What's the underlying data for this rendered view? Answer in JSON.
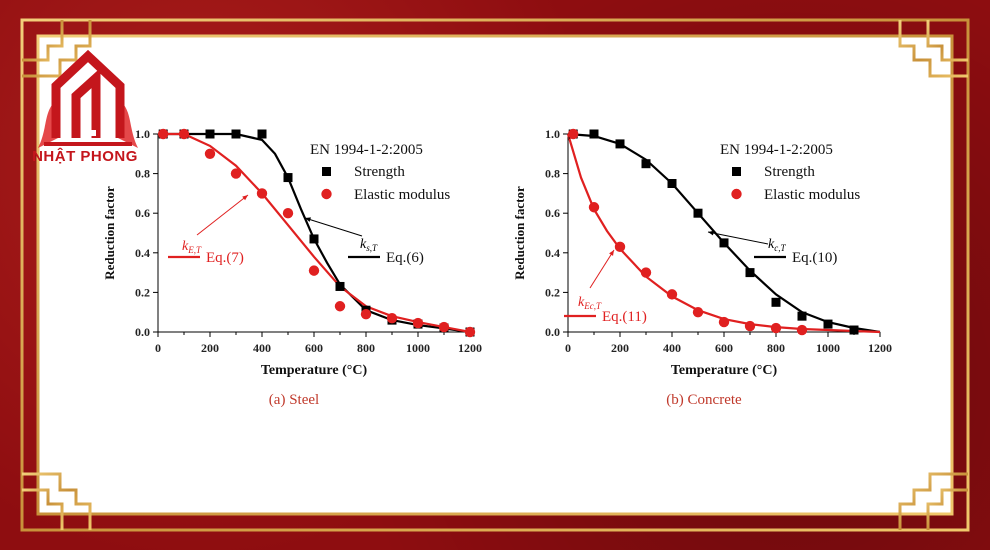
{
  "brand": {
    "name": "NHẬT PHONG"
  },
  "colors": {
    "frame_red": "#8e0d10",
    "gold": "#d9a441",
    "strength": "#000000",
    "elastic": "#e02020"
  },
  "chart_data": [
    {
      "type": "scatter",
      "caption": "(a) Steel",
      "xlabel": "Temperature (°C)",
      "ylabel": "Reduction factor",
      "xlim": [
        0,
        1200
      ],
      "ylim": [
        0,
        1.0
      ],
      "xticks": [
        "0",
        "200",
        "400",
        "600",
        "800",
        "1000",
        "1200"
      ],
      "yticks": [
        "0.0",
        "0.2",
        "0.4",
        "0.6",
        "0.8",
        "1.0"
      ],
      "legend": {
        "title": "EN 1994-1-2:2005",
        "items": [
          "Strength",
          "Elastic modulus"
        ],
        "placement": "top-right"
      },
      "series": [
        {
          "name": "Strength",
          "marker": "square",
          "color": "#000000",
          "points": [
            [
              20,
              1.0
            ],
            [
              100,
              1.0
            ],
            [
              200,
              1.0
            ],
            [
              300,
              1.0
            ],
            [
              400,
              1.0
            ],
            [
              500,
              0.78
            ],
            [
              600,
              0.47
            ],
            [
              700,
              0.23
            ],
            [
              800,
              0.11
            ],
            [
              900,
              0.06
            ],
            [
              1000,
              0.04
            ],
            [
              1100,
              0.02
            ],
            [
              1200,
              0.0
            ]
          ]
        },
        {
          "name": "Elastic modulus",
          "marker": "circle",
          "color": "#e02020",
          "points": [
            [
              20,
              1.0
            ],
            [
              100,
              1.0
            ],
            [
              200,
              0.9
            ],
            [
              300,
              0.8
            ],
            [
              400,
              0.7
            ],
            [
              500,
              0.6
            ],
            [
              600,
              0.31
            ],
            [
              700,
              0.13
            ],
            [
              800,
              0.09
            ],
            [
              900,
              0.07
            ],
            [
              1000,
              0.045
            ],
            [
              1100,
              0.025
            ],
            [
              1200,
              0.0
            ]
          ]
        }
      ],
      "curves": [
        {
          "label": "Eq.(6)",
          "color": "#000000",
          "points": [
            [
              0,
              1.0
            ],
            [
              300,
              1.0
            ],
            [
              400,
              0.97
            ],
            [
              450,
              0.9
            ],
            [
              500,
              0.78
            ],
            [
              550,
              0.62
            ],
            [
              600,
              0.47
            ],
            [
              650,
              0.35
            ],
            [
              700,
              0.24
            ],
            [
              800,
              0.11
            ],
            [
              900,
              0.06
            ],
            [
              1000,
              0.035
            ],
            [
              1100,
              0.018
            ],
            [
              1200,
              0.0
            ]
          ]
        },
        {
          "label": "Eq.(7)",
          "color": "#e02020",
          "points": [
            [
              0,
              1.0
            ],
            [
              100,
              1.0
            ],
            [
              200,
              0.94
            ],
            [
              300,
              0.84
            ],
            [
              400,
              0.7
            ],
            [
              500,
              0.54
            ],
            [
              600,
              0.38
            ],
            [
              700,
              0.23
            ],
            [
              800,
              0.13
            ],
            [
              900,
              0.08
            ],
            [
              1000,
              0.05
            ],
            [
              1100,
              0.025
            ],
            [
              1200,
              0.0
            ]
          ]
        }
      ],
      "annotations": [
        {
          "label": "k",
          "sub": "s,T",
          "text": "Eq.(6)"
        },
        {
          "label": "k",
          "sub": "E,T",
          "text": "Eq.(7)"
        }
      ]
    },
    {
      "type": "scatter",
      "caption": "(b) Concrete",
      "xlabel": "Temperature (°C)",
      "ylabel": "Reduction factor",
      "xlim": [
        0,
        1200
      ],
      "ylim": [
        0,
        1.0
      ],
      "xticks": [
        "0",
        "200",
        "400",
        "600",
        "800",
        "1000",
        "1200"
      ],
      "yticks": [
        "0.0",
        "0.2",
        "0.4",
        "0.6",
        "0.8",
        "1.0"
      ],
      "legend": {
        "title": "EN 1994-1-2:2005",
        "items": [
          "Strength",
          "Elastic modulus"
        ],
        "placement": "top-right"
      },
      "series": [
        {
          "name": "Strength",
          "marker": "square",
          "color": "#000000",
          "points": [
            [
              20,
              1.0
            ],
            [
              100,
              1.0
            ],
            [
              200,
              0.95
            ],
            [
              300,
              0.85
            ],
            [
              400,
              0.75
            ],
            [
              500,
              0.6
            ],
            [
              600,
              0.45
            ],
            [
              700,
              0.3
            ],
            [
              800,
              0.15
            ],
            [
              900,
              0.08
            ],
            [
              1000,
              0.04
            ],
            [
              1100,
              0.01
            ]
          ]
        },
        {
          "name": "Elastic modulus",
          "marker": "circle",
          "color": "#e02020",
          "points": [
            [
              20,
              1.0
            ],
            [
              100,
              0.63
            ],
            [
              200,
              0.43
            ],
            [
              300,
              0.3
            ],
            [
              400,
              0.19
            ],
            [
              500,
              0.1
            ],
            [
              600,
              0.05
            ],
            [
              700,
              0.03
            ],
            [
              800,
              0.02
            ],
            [
              900,
              0.01
            ]
          ]
        }
      ],
      "curves": [
        {
          "label": "Eq.(10)",
          "color": "#000000",
          "points": [
            [
              0,
              1.0
            ],
            [
              100,
              0.99
            ],
            [
              200,
              0.95
            ],
            [
              300,
              0.87
            ],
            [
              400,
              0.75
            ],
            [
              500,
              0.6
            ],
            [
              600,
              0.45
            ],
            [
              700,
              0.31
            ],
            [
              800,
              0.19
            ],
            [
              900,
              0.1
            ],
            [
              1000,
              0.05
            ],
            [
              1100,
              0.02
            ],
            [
              1200,
              0.0
            ]
          ]
        },
        {
          "label": "Eq.(11)",
          "color": "#e02020",
          "points": [
            [
              0,
              1.0
            ],
            [
              50,
              0.78
            ],
            [
              100,
              0.62
            ],
            [
              150,
              0.51
            ],
            [
              200,
              0.42
            ],
            [
              300,
              0.28
            ],
            [
              400,
              0.18
            ],
            [
              500,
              0.11
            ],
            [
              600,
              0.065
            ],
            [
              700,
              0.04
            ],
            [
              800,
              0.025
            ],
            [
              900,
              0.015
            ],
            [
              1000,
              0.01
            ],
            [
              1200,
              0.0
            ]
          ]
        }
      ],
      "annotations": [
        {
          "label": "k",
          "sub": "c,T",
          "text": "Eq.(10)"
        },
        {
          "label": "k",
          "sub": "Ec,T",
          "text": "Eq.(11)"
        }
      ]
    }
  ]
}
